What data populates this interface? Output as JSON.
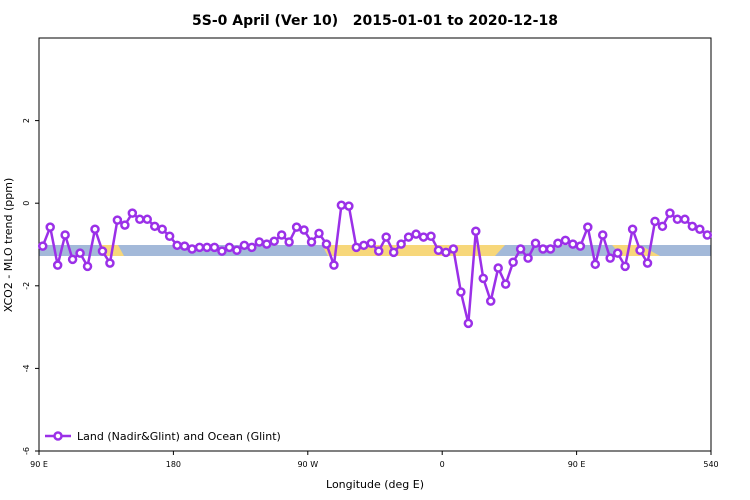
{
  "chart_data": {
    "type": "line",
    "title": "5S-0 April (Ver 10)   2015-01-01 to 2020-12-18",
    "x_label": "Longitude (deg E)",
    "y_label": "XCO2 - MLO trend (ppm)",
    "xlim": [
      90,
      540
    ],
    "xticks": [
      {
        "value": 90,
        "label": "90 E"
      },
      180,
      {
        "value": 270,
        "label": "90 W"
      },
      {
        "value": 360,
        "label": "0"
      },
      {
        "value": 450,
        "label": "90 E"
      },
      540
    ],
    "ylim": [
      -6,
      4
    ],
    "yticks": [
      -6,
      -4,
      -2,
      0,
      2
    ],
    "legend": "bottom-left",
    "x": [
      92.5,
      97.5,
      102.5,
      107.5,
      112.5,
      117.5,
      122.5,
      127.5,
      132.5,
      137.5,
      142.5,
      147.5,
      152.5,
      157.5,
      162.5,
      167.5,
      172.5,
      177.5,
      182.5,
      187.5,
      192.5,
      197.5,
      202.5,
      207.5,
      212.5,
      217.5,
      222.5,
      227.5,
      232.5,
      237.5,
      242.5,
      247.5,
      252.5,
      257.5,
      262.5,
      267.5,
      272.5,
      277.5,
      282.5,
      287.5,
      292.5,
      297.5,
      302.5,
      307.5,
      312.5,
      317.5,
      322.5,
      327.5,
      332.5,
      337.5,
      342.5,
      347.5,
      352.5,
      357.5,
      362.5,
      367.5,
      372.5,
      377.5,
      382.5,
      387.5,
      392.5,
      397.5,
      402.5,
      407.5,
      412.5,
      417.5,
      422.5,
      427.5,
      432.5,
      437.5,
      442.5,
      447.5,
      452.5,
      457.5,
      462.5,
      467.5,
      472.5,
      477.5,
      482.5,
      487.5,
      492.5,
      497.5,
      502.5,
      507.5,
      512.5,
      517.5,
      522.5,
      527.5,
      532.5,
      537.5
    ],
    "series": [
      {
        "name": "Land (Nadir&Glint) and Ocean (Glint)",
        "color": "#9b30e8",
        "values": [
          -1.04,
          -0.58,
          -1.5,
          -0.77,
          -1.36,
          -1.21,
          -1.53,
          -0.63,
          -1.16,
          -1.45,
          -0.41,
          -0.53,
          -0.24,
          -0.39,
          -0.39,
          -0.56,
          -0.63,
          -0.8,
          -1.02,
          -1.04,
          -1.11,
          -1.07,
          -1.07,
          -1.07,
          -1.16,
          -1.07,
          -1.14,
          -1.02,
          -1.07,
          -0.94,
          -0.99,
          -0.92,
          -0.77,
          -0.94,
          -0.58,
          -0.65,
          -0.94,
          -0.73,
          -0.99,
          -1.5,
          -0.05,
          -0.07,
          -1.07,
          -1.02,
          -0.97,
          -1.16,
          -0.82,
          -1.19,
          -0.99,
          -0.82,
          -0.75,
          -0.82,
          -0.8,
          -1.14,
          -1.19,
          -1.11,
          -2.15,
          -2.91,
          -0.68,
          -1.82,
          -2.37,
          -1.57,
          -1.96,
          -1.43,
          -1.11,
          -1.33,
          -0.97,
          -1.11,
          -1.11,
          -0.97,
          -0.9,
          -0.99,
          -1.04,
          -0.58,
          -1.48,
          -0.77,
          -1.33,
          -1.21,
          -1.53,
          -0.63,
          -1.14,
          -1.45,
          -0.44,
          -0.56,
          -0.24,
          -0.39,
          -0.39,
          -0.56,
          -0.63,
          -0.77
        ]
      }
    ]
  }
}
